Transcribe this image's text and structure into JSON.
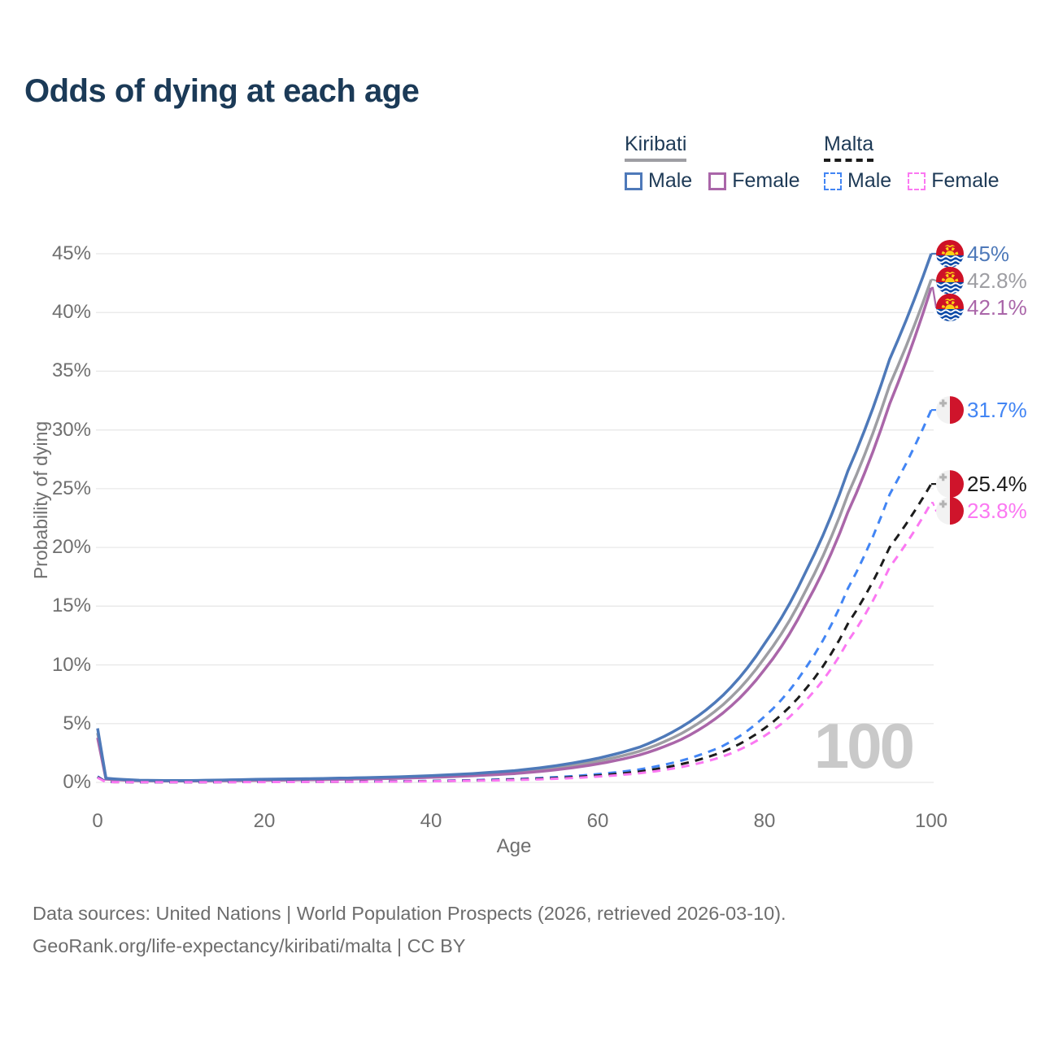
{
  "header": {
    "title": "Odds of dying at each age"
  },
  "legend": {
    "groups": [
      {
        "name": "Kiribati",
        "line_style": "solid",
        "underline_color": "#9e9ea3",
        "items": [
          {
            "label": "Male",
            "color": "#4e79b9",
            "dashed": false
          },
          {
            "label": "Female",
            "color": "#aa66a9",
            "dashed": false
          }
        ]
      },
      {
        "name": "Malta",
        "line_style": "dashed",
        "underline_color": "#1c1c1c",
        "items": [
          {
            "label": "Male",
            "color": "#4285f4",
            "dashed": true
          },
          {
            "label": "Female",
            "color": "#fb78f2",
            "dashed": true
          }
        ]
      }
    ]
  },
  "chart_data": {
    "type": "line",
    "title": "Odds of dying at each age",
    "xlabel": "Age",
    "ylabel": "Probability of dying",
    "xlim": [
      0,
      100
    ],
    "ylim": [
      0,
      45
    ],
    "grid": true,
    "x_ticks": [
      0,
      20,
      40,
      60,
      80,
      100
    ],
    "y_ticks": [
      "0%",
      "5%",
      "10%",
      "15%",
      "20%",
      "25%",
      "30%",
      "35%",
      "40%",
      "45%"
    ],
    "y_tick_values": [
      0,
      5,
      10,
      15,
      20,
      25,
      30,
      35,
      40,
      45
    ],
    "age_watermark": "100",
    "grid_color": "#e8e8e8",
    "series": [
      {
        "name": "Kiribati Both sexes",
        "flag": "kiribati",
        "color": "#9e9ea3",
        "dashed": false,
        "end_label": "42.8%",
        "points": [
          [
            0,
            4.2
          ],
          [
            1,
            0.32
          ],
          [
            5,
            0.16
          ],
          [
            10,
            0.13
          ],
          [
            15,
            0.17
          ],
          [
            20,
            0.23
          ],
          [
            25,
            0.27
          ],
          [
            30,
            0.32
          ],
          [
            35,
            0.39
          ],
          [
            40,
            0.5
          ],
          [
            45,
            0.65
          ],
          [
            50,
            0.87
          ],
          [
            55,
            1.24
          ],
          [
            60,
            1.8
          ],
          [
            65,
            2.65
          ],
          [
            70,
            4.15
          ],
          [
            75,
            6.6
          ],
          [
            80,
            10.6
          ],
          [
            85,
            16.4
          ],
          [
            90,
            24.5
          ],
          [
            95,
            33.8
          ],
          [
            100,
            42.8
          ]
        ]
      },
      {
        "name": "Kiribati Female",
        "flag": "kiribati",
        "color": "#aa66a9",
        "dashed": false,
        "end_label": "42.1%",
        "points": [
          [
            0,
            3.8
          ],
          [
            1,
            0.28
          ],
          [
            5,
            0.14
          ],
          [
            10,
            0.12
          ],
          [
            15,
            0.14
          ],
          [
            20,
            0.18
          ],
          [
            25,
            0.22
          ],
          [
            30,
            0.27
          ],
          [
            35,
            0.33
          ],
          [
            40,
            0.43
          ],
          [
            45,
            0.56
          ],
          [
            50,
            0.75
          ],
          [
            55,
            1.07
          ],
          [
            60,
            1.57
          ],
          [
            65,
            2.33
          ],
          [
            70,
            3.65
          ],
          [
            75,
            5.9
          ],
          [
            80,
            9.6
          ],
          [
            85,
            15.2
          ],
          [
            90,
            23.0
          ],
          [
            95,
            32.2
          ],
          [
            100,
            42.1
          ]
        ]
      },
      {
        "name": "Kiribati Male",
        "flag": "kiribati",
        "color": "#4e79b9",
        "dashed": false,
        "end_label": "45%",
        "points": [
          [
            0,
            4.6
          ],
          [
            1,
            0.35
          ],
          [
            5,
            0.18
          ],
          [
            10,
            0.15
          ],
          [
            15,
            0.2
          ],
          [
            20,
            0.27
          ],
          [
            25,
            0.31
          ],
          [
            30,
            0.37
          ],
          [
            35,
            0.45
          ],
          [
            40,
            0.57
          ],
          [
            45,
            0.75
          ],
          [
            50,
            1.0
          ],
          [
            55,
            1.42
          ],
          [
            60,
            2.05
          ],
          [
            65,
            3.0
          ],
          [
            70,
            4.7
          ],
          [
            75,
            7.4
          ],
          [
            80,
            11.8
          ],
          [
            85,
            18.0
          ],
          [
            90,
            26.5
          ],
          [
            95,
            36.0
          ],
          [
            100,
            45.0
          ]
        ]
      },
      {
        "name": "Malta Male",
        "flag": "malta",
        "color": "#4285f4",
        "dashed": true,
        "end_label": "31.7%",
        "points": [
          [
            0,
            0.5
          ],
          [
            1,
            0.04
          ],
          [
            5,
            0.02
          ],
          [
            10,
            0.02
          ],
          [
            15,
            0.03
          ],
          [
            20,
            0.05
          ],
          [
            25,
            0.06
          ],
          [
            30,
            0.07
          ],
          [
            35,
            0.09
          ],
          [
            40,
            0.13
          ],
          [
            45,
            0.19
          ],
          [
            50,
            0.28
          ],
          [
            55,
            0.44
          ],
          [
            60,
            0.7
          ],
          [
            65,
            1.1
          ],
          [
            70,
            1.85
          ],
          [
            75,
            3.1
          ],
          [
            80,
            5.6
          ],
          [
            85,
            9.8
          ],
          [
            90,
            16.5
          ],
          [
            95,
            24.5
          ],
          [
            100,
            31.7
          ]
        ]
      },
      {
        "name": "Malta Both sexes",
        "flag": "malta",
        "color": "#1c1c1c",
        "dashed": true,
        "end_label": "25.4%",
        "points": [
          [
            0,
            0.45
          ],
          [
            1,
            0.035
          ],
          [
            5,
            0.018
          ],
          [
            10,
            0.018
          ],
          [
            15,
            0.025
          ],
          [
            20,
            0.04
          ],
          [
            25,
            0.05
          ],
          [
            30,
            0.06
          ],
          [
            35,
            0.08
          ],
          [
            40,
            0.11
          ],
          [
            45,
            0.16
          ],
          [
            50,
            0.24
          ],
          [
            55,
            0.37
          ],
          [
            60,
            0.58
          ],
          [
            65,
            0.92
          ],
          [
            70,
            1.55
          ],
          [
            75,
            2.6
          ],
          [
            80,
            4.6
          ],
          [
            85,
            8.0
          ],
          [
            90,
            13.5
          ],
          [
            95,
            20.0
          ],
          [
            100,
            25.4
          ]
        ]
      },
      {
        "name": "Malta Female",
        "flag": "malta",
        "color": "#fb78f2",
        "dashed": true,
        "end_label": "23.8%",
        "points": [
          [
            0,
            0.4
          ],
          [
            1,
            0.03
          ],
          [
            5,
            0.015
          ],
          [
            10,
            0.015
          ],
          [
            15,
            0.02
          ],
          [
            20,
            0.03
          ],
          [
            25,
            0.04
          ],
          [
            30,
            0.05
          ],
          [
            35,
            0.07
          ],
          [
            40,
            0.1
          ],
          [
            45,
            0.14
          ],
          [
            50,
            0.2
          ],
          [
            55,
            0.31
          ],
          [
            60,
            0.49
          ],
          [
            65,
            0.78
          ],
          [
            70,
            1.3
          ],
          [
            75,
            2.2
          ],
          [
            80,
            3.95
          ],
          [
            85,
            7.0
          ],
          [
            90,
            12.0
          ],
          [
            95,
            18.3
          ],
          [
            100,
            23.8
          ]
        ]
      }
    ]
  },
  "footer": {
    "line1": "Data sources: United Nations | World Population Prospects (2026, retrieved 2026-03-10).",
    "line2": "GeoRank.org/life-expectancy/kiribati/malta | CC BY"
  }
}
